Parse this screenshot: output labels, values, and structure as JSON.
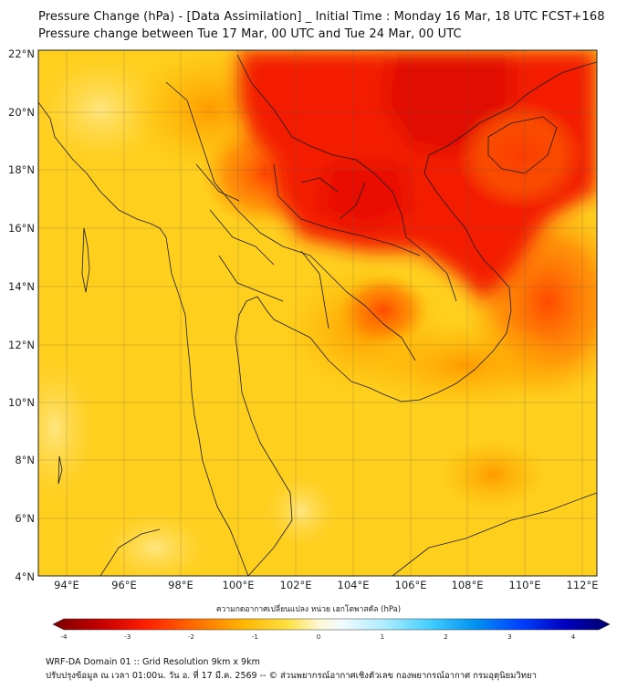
{
  "title": {
    "line1": "Pressure Change (hPa) - [Data Assimilation] _ Initial Time : Monday 16 Mar, 18 UTC FCST+168",
    "line2": "Pressure change between Tue 17 Mar, 00 UTC and Tue 24 Mar, 00 UTC"
  },
  "map": {
    "lat_labels": [
      "22°N",
      "20°N",
      "18°N",
      "16°N",
      "14°N",
      "12°N",
      "10°N",
      "8°N",
      "6°N",
      "4°N"
    ],
    "lon_labels": [
      "94°E",
      "96°E",
      "98°E",
      "100°E",
      "102°E",
      "104°E",
      "106°E",
      "108°E",
      "110°E",
      "112°E"
    ],
    "lat_range": [
      4,
      22
    ],
    "lon_range": [
      93,
      112.5
    ],
    "gridlines": true,
    "field": "Pressure Change (hPa)",
    "colors": {
      "strong_fall": "#f01800",
      "moderate_fall": "#ff6a00",
      "weak_fall": "#ffb000",
      "slight_fall": "#ffd200",
      "near_zero": "#ffe680",
      "coastline": "#1a1a1a"
    }
  },
  "colorbar": {
    "title": "ความกดอากาศเปลี่ยนแปลง หน่วย เฮกโตพาสคัล (hPa)",
    "ticks": [
      "-4",
      "-3",
      "-2",
      "-1",
      "0",
      "1",
      "2",
      "3",
      "4"
    ],
    "range": [
      -4,
      4
    ],
    "colors": [
      "#7a0000",
      "#d60000",
      "#ff3a00",
      "#ff8c00",
      "#ffc400",
      "#ffee66",
      "#ffffff",
      "#cdf3ff",
      "#66ddff",
      "#00a8f0",
      "#0050ff",
      "#0000c8",
      "#00006e"
    ]
  },
  "footer": {
    "line1": "WRF-DA Domain 01 :: Grid Resolution 9km x 9km",
    "line2": "ปรับปรุงข้อมูล ณ เวลา 01:00น. วัน อ. ที่ 17 มี.ค. 2569 -- © ส่วนพยากรณ์อากาศเชิงตัวเลข กองพยากรณ์อากาศ กรมอุตุนิยมวิทยา"
  }
}
